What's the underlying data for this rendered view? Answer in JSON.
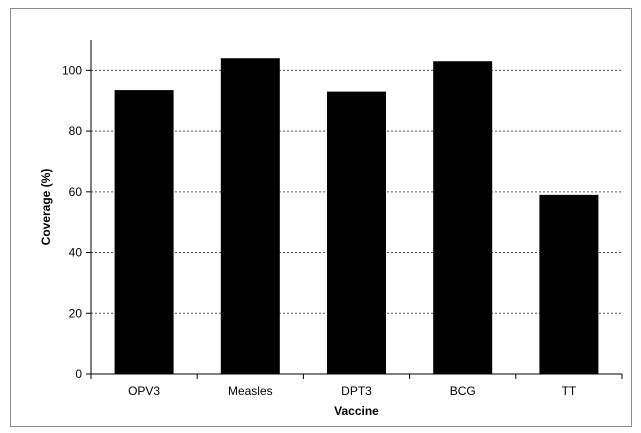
{
  "chart_data": {
    "type": "bar",
    "title": "",
    "xlabel": "Vaccine",
    "ylabel": "Coverage (%)",
    "categories": [
      "OPV3",
      "Measles",
      "DPT3",
      "BCG",
      "TT"
    ],
    "values": [
      93.5,
      104,
      93,
      103,
      59
    ],
    "ylim": [
      0,
      110
    ],
    "yticks": [
      0,
      20,
      40,
      60,
      80,
      100
    ],
    "grid": "horizontal-dotted",
    "legend": "none",
    "bar_color": "#000000",
    "grid_color": "#555555"
  }
}
